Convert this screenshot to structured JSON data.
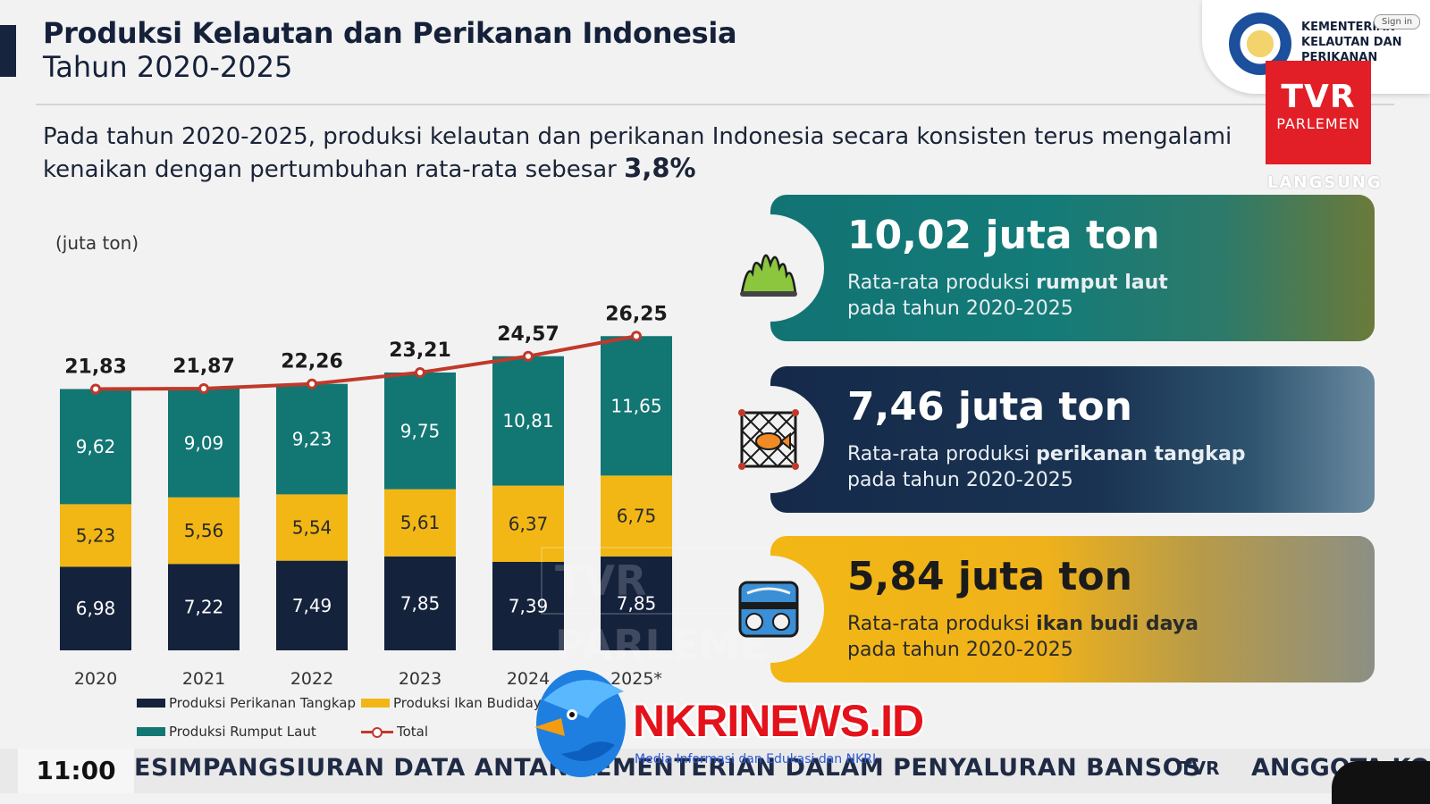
{
  "header": {
    "title_line1": "Produksi Kelautan dan Perikanan Indonesia",
    "title_line2": "Tahun 2020-2025"
  },
  "description": {
    "text": "Pada tahun 2020-2025, produksi kelautan dan perikanan Indonesia secara konsisten terus mengalami kenaikan dengan pertumbuhan rata-rata sebesar ",
    "highlight": "3,8%"
  },
  "chart_data": {
    "type": "bar",
    "stacked": true,
    "unit_label": "(juta ton)",
    "categories": [
      "2020",
      "2021",
      "2022",
      "2023",
      "2024",
      "2025*"
    ],
    "series": [
      {
        "name": "Produksi Perikanan Tangkap",
        "color": "#15223c",
        "values": [
          6.98,
          7.22,
          7.49,
          7.85,
          7.39,
          7.85
        ],
        "labels": [
          "6,98",
          "7,22",
          "7,49",
          "7,85",
          "7,39",
          "7,85"
        ]
      },
      {
        "name": "Produksi Ikan Budidaya",
        "color": "#f2b715",
        "values": [
          5.23,
          5.56,
          5.54,
          5.61,
          6.37,
          6.75
        ],
        "labels": [
          "5,23",
          "5,56",
          "5,54",
          "5,61",
          "6,37",
          "6,75"
        ]
      },
      {
        "name": "Produksi Rumput Laut",
        "color": "#127673",
        "values": [
          9.62,
          9.09,
          9.23,
          9.75,
          10.81,
          11.65
        ],
        "labels": [
          "9,62",
          "9,09",
          "9,23",
          "9,75",
          "10,81",
          "11,65"
        ]
      }
    ],
    "total": {
      "name": "Total",
      "color": "#c0392b",
      "values": [
        21.83,
        21.87,
        22.26,
        23.21,
        24.57,
        26.25
      ],
      "labels": [
        "21,83",
        "21,87",
        "22,26",
        "23,21",
        "24,57",
        "26,25"
      ]
    },
    "legend": "bottom"
  },
  "cards": [
    {
      "value": "10,02 juta ton",
      "line1_pre": "Rata-rata produksi ",
      "line1_bold": "rumput laut",
      "line2": "pada tahun 2020-2025",
      "icon": "seaweed-icon"
    },
    {
      "value": "7,46 juta ton",
      "line1_pre": "Rata-rata produksi ",
      "line1_bold": "perikanan tangkap",
      "line2": "pada tahun 2020-2025",
      "icon": "fish-net-icon"
    },
    {
      "value": "5,84 juta ton",
      "line1_pre": "Rata-rata produksi ",
      "line1_bold": "ikan budi daya",
      "line2": "pada tahun 2020-2025",
      "icon": "fish-pond-icon"
    }
  ],
  "broadcast": {
    "ministry": "KEMENTERIAN KELAUTAN DAN PERIKANAN",
    "sign_in": "Sign in",
    "channel_line1": "TVR",
    "channel_line2": "PARLEMEN",
    "live": "LANGSUNG",
    "clock": "11:00",
    "ticker": "ESIMPANGSIURAN DATA ANTAR KEMENTERIAN DALAM PENYALURAN BANSOS",
    "ticker_next": "ANGGOTA KO",
    "ticker_logo": "TVR",
    "watermark": "TVR PARLEMEN",
    "site": "NKRINEWS.ID",
    "site_sub": "Media Informasi dan Edukasi dan NKRI"
  }
}
